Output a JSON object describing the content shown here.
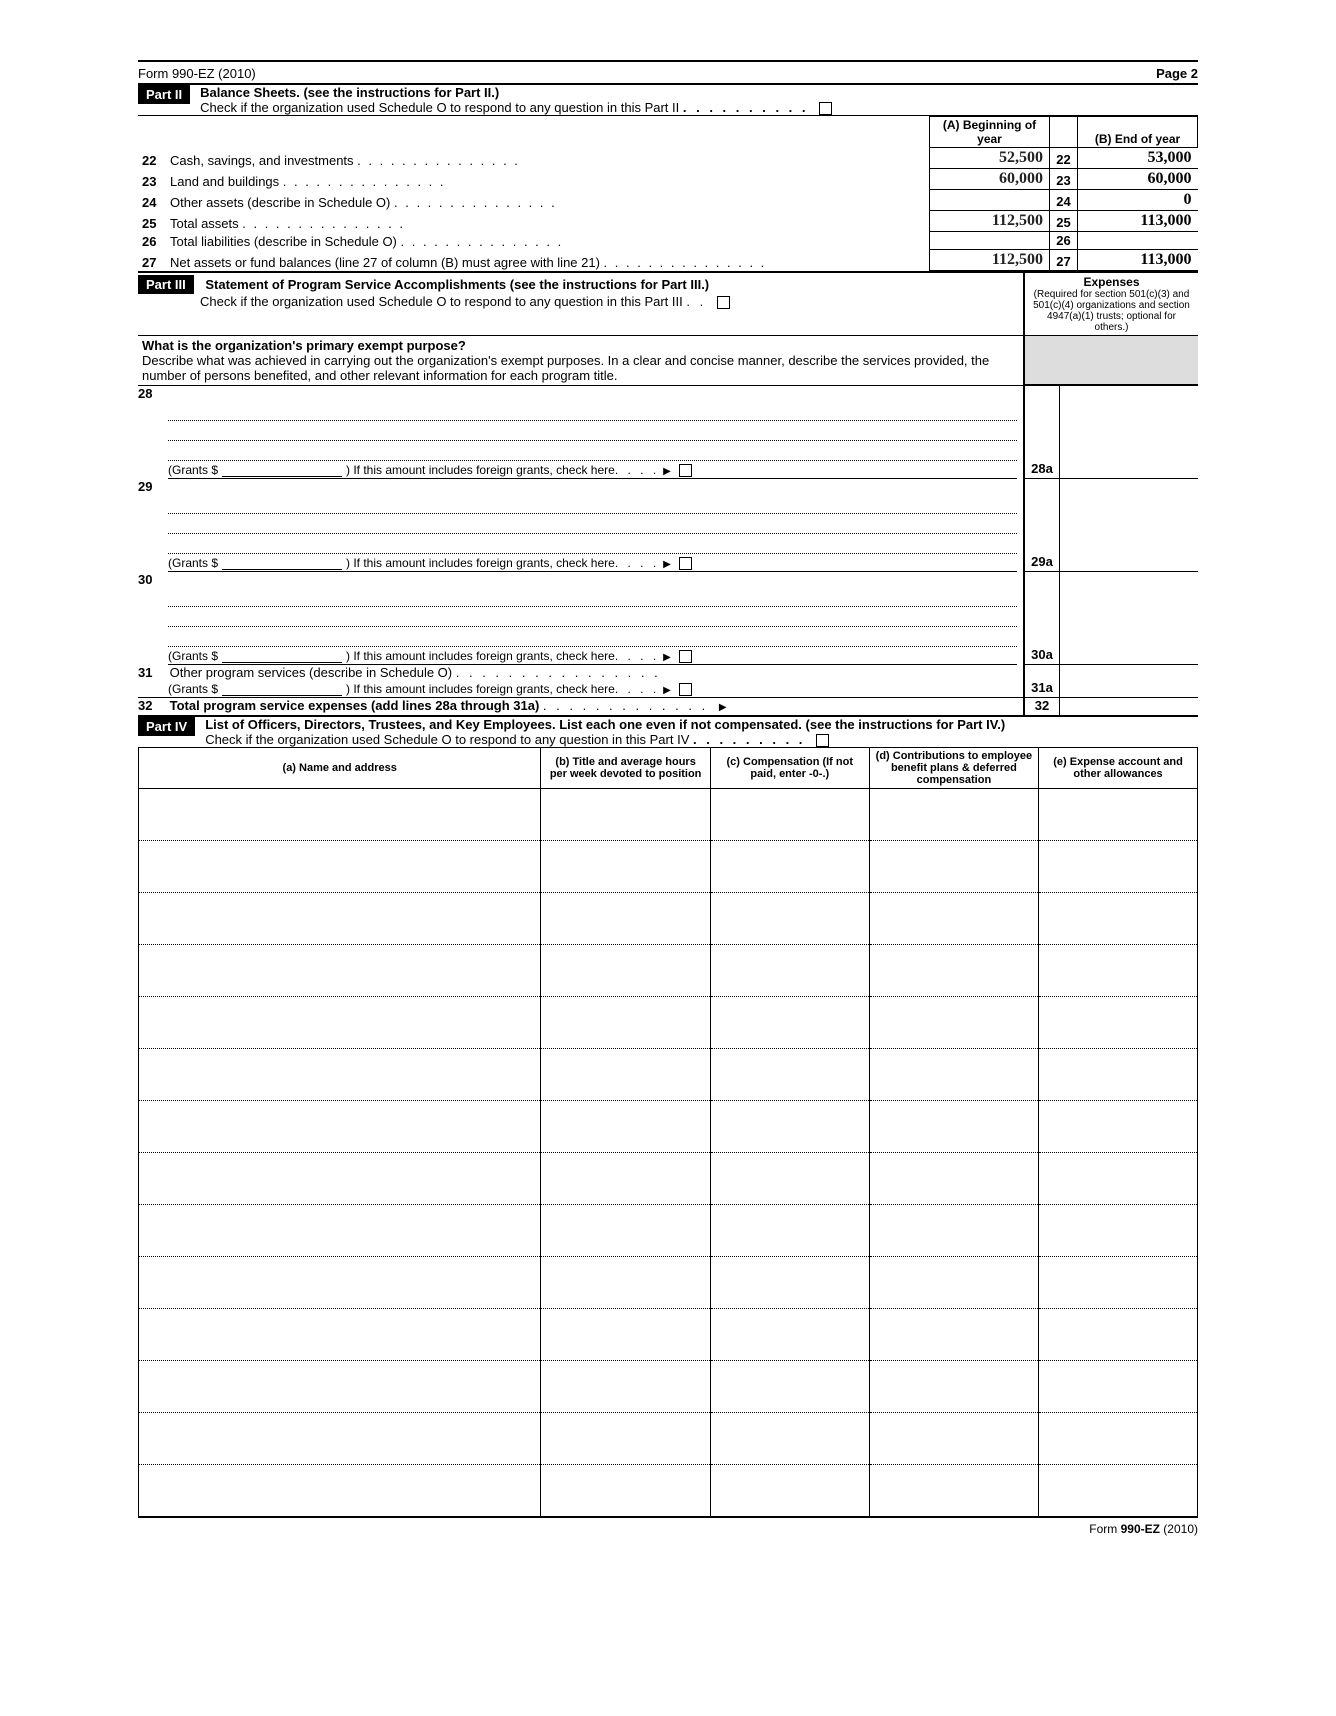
{
  "form_header_left": "Form 990-EZ (2010)",
  "form_header_right": "Page 2",
  "part2": {
    "label": "Part II",
    "title": "Balance Sheets. (see the instructions for Part II.)",
    "subline": "Check if the organization used Schedule O to respond to any question in this Part II",
    "colA": "(A) Beginning of year",
    "colB": "(B) End of year",
    "rows": [
      {
        "n": "22",
        "desc": "Cash, savings, and investments",
        "a": "52,500",
        "ln": "22",
        "b": "53,000"
      },
      {
        "n": "23",
        "desc": "Land and buildings",
        "a": "60,000",
        "ln": "23",
        "b": "60,000"
      },
      {
        "n": "24",
        "desc": "Other assets (describe in Schedule O)",
        "a": "",
        "ln": "24",
        "b": "0"
      },
      {
        "n": "25",
        "desc": "Total assets",
        "a": "112,500",
        "ln": "25",
        "b": "113,000"
      },
      {
        "n": "26",
        "desc": "Total liabilities (describe in Schedule O)",
        "a": "",
        "ln": "26",
        "b": ""
      },
      {
        "n": "27",
        "desc": "Net assets or fund balances (line 27 of column (B) must agree with line 21)",
        "a": "112,500",
        "ln": "27",
        "b": "113,000"
      }
    ]
  },
  "part3": {
    "label": "Part III",
    "title": "Statement of Program Service Accomplishments (see the instructions for Part III.)",
    "subline": "Check if the organization used Schedule O to respond to any question in this Part III",
    "expenses_hdr": "Expenses",
    "expenses_sub": "(Required for section 501(c)(3) and 501(c)(4) organizations and section 4947(a)(1) trusts; optional for others.)",
    "primary_q": "What is the organization's primary exempt purpose?",
    "primary_desc": "Describe what was achieved in carrying out the organization's exempt purposes. In a clear and concise manner, describe the services provided, the number of persons benefited, and other relevant information for each program title.",
    "grants_label": "(Grants $",
    "foreign_label": ")  If this amount includes foreign grants, check here",
    "line31": "Other program services (describe in Schedule O)",
    "line32": "Total program service expenses (add lines 28a through 31a)",
    "rn": {
      "28": "28",
      "28a": "28a",
      "29": "29",
      "29a": "29a",
      "30": "30",
      "30a": "30a",
      "31": "31",
      "31a": "31a",
      "32": "32"
    }
  },
  "part4": {
    "label": "Part IV",
    "title": "List of Officers, Directors, Trustees, and Key Employees. List each one even if not compensated. (see the instructions for Part IV.)",
    "subline": "Check if the organization used Schedule O to respond to any question in this Part IV",
    "headers": {
      "a": "(a) Name and address",
      "b": "(b) Title and average hours per week devoted to position",
      "c": "(c) Compensation (If not paid, enter -0-.)",
      "d": "(d) Contributions to employee benefit plans & deferred compensation",
      "e": "(e) Expense account and other allowances"
    },
    "n_rows": 14
  },
  "footer": "Form 990-EZ (2010)"
}
